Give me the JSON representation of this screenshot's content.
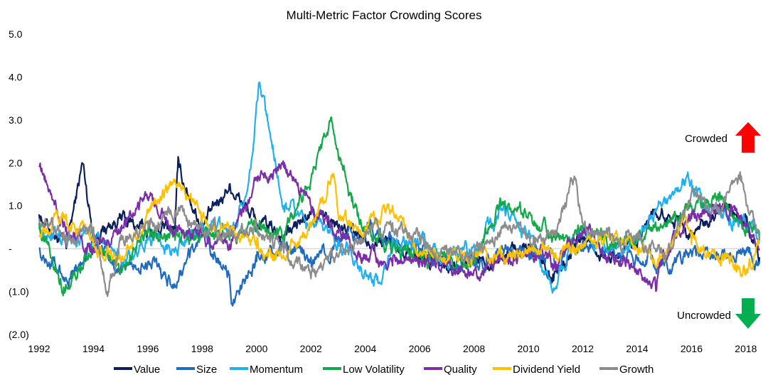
{
  "chart_data": {
    "type": "line",
    "title": "Multi-Metric Factor Crowding Scores",
    "xlabel": "",
    "ylabel": "",
    "xlim": [
      1992,
      2018.5
    ],
    "ylim": [
      -2.0,
      5.0
    ],
    "x_ticks": [
      1992,
      1994,
      1996,
      1998,
      2000,
      2002,
      2004,
      2006,
      2008,
      2010,
      2012,
      2014,
      2016,
      2018
    ],
    "x_tick_labels": [
      "1992",
      "1994",
      "1996",
      "1998",
      "2000",
      "2002",
      "2004",
      "2006",
      "2008",
      "2010",
      "2012",
      "2014",
      "2016",
      "2018"
    ],
    "y_ticks": [
      5,
      4,
      3,
      2,
      1,
      0,
      -1,
      -2
    ],
    "y_tick_labels": [
      "5.0",
      "4.0",
      "3.0",
      "2.0",
      "1.0",
      "-",
      "(1.0)",
      "(2.0)"
    ],
    "grid": false,
    "zero_line": true,
    "legend_position": "bottom",
    "annotations": {
      "crowded": {
        "label": "Crowded",
        "color": "#ff0000"
      },
      "uncrowded": {
        "label": "Uncrowded",
        "color": "#00b050"
      }
    },
    "series": [
      {
        "name": "Value",
        "color": "#0b1f5c",
        "x": [
          1992,
          1993,
          1993.6,
          1994,
          1995,
          1996,
          1997,
          1997.1,
          1998,
          1999,
          2000,
          2001,
          2002,
          2003,
          2004,
          2005,
          2006,
          2007,
          2008,
          2009,
          2010,
          2010.9,
          2012,
          2013,
          2014,
          2014.6,
          2015.5,
          2016,
          2017,
          2018,
          2018.5
        ],
        "y": [
          0.8,
          0.0,
          2.0,
          0.3,
          0.7,
          0.4,
          0.5,
          1.9,
          0.5,
          1.5,
          0.6,
          0.3,
          0.8,
          0.5,
          0.3,
          0.1,
          -0.2,
          -0.5,
          -0.3,
          -0.2,
          0.1,
          -0.6,
          0.3,
          -0.3,
          0.0,
          0.9,
          0.7,
          0.3,
          1.0,
          0.6,
          -0.2
        ]
      },
      {
        "name": "Size",
        "color": "#1f6bbf",
        "x": [
          1992,
          1993,
          1994,
          1995,
          1996,
          1997,
          1998,
          1999,
          1999.1,
          2000,
          2001,
          2002,
          2003,
          2004,
          2005,
          2006,
          2007,
          2008,
          2009,
          2010,
          2011,
          2012,
          2013,
          2014,
          2015,
          2016,
          2017,
          2018,
          2018.5
        ],
        "y": [
          0.0,
          -0.7,
          0.2,
          -0.5,
          -0.3,
          -0.9,
          0.3,
          -0.6,
          -1.3,
          -0.3,
          0.0,
          -0.2,
          0.1,
          0.5,
          0.1,
          0.0,
          -0.3,
          -0.4,
          0.0,
          0.0,
          -0.3,
          0.2,
          -0.1,
          -0.2,
          -0.4,
          -0.1,
          -0.2,
          -0.1,
          -0.3
        ]
      },
      {
        "name": "Momentum",
        "color": "#20b0f0",
        "x": [
          1992,
          1993,
          1994,
          1995,
          1996,
          1997,
          1998,
          1999,
          1999.7,
          2000.1,
          2000.6,
          2001,
          2001.5,
          2002,
          2003,
          2004,
          2004.5,
          2005,
          2006,
          2007,
          2008,
          2009,
          2010,
          2010.9,
          2011.5,
          2012,
          2013,
          2014,
          2015,
          2016,
          2016.5,
          2017,
          2018,
          2018.5
        ],
        "y": [
          0.5,
          0.2,
          0.4,
          -0.3,
          0.2,
          0.0,
          0.6,
          0.4,
          1.5,
          3.9,
          2.4,
          1.0,
          0.8,
          0.6,
          0.2,
          -0.5,
          -0.8,
          0.2,
          0.1,
          -0.3,
          0.1,
          0.9,
          0.3,
          -1.0,
          0.0,
          0.3,
          0.1,
          0.2,
          1.2,
          1.6,
          1.0,
          0.8,
          0.5,
          0.3
        ]
      },
      {
        "name": "Low Volatility",
        "color": "#14a84a",
        "x": [
          1992,
          1992.9,
          1994,
          1995,
          1996,
          1997,
          1998,
          1999,
          2000,
          2001,
          2002,
          2002.7,
          2003.5,
          2004,
          2005,
          2006,
          2007,
          2008,
          2009,
          2010,
          2011,
          2012,
          2013,
          2014,
          2015,
          2016,
          2017,
          2018,
          2018.5
        ],
        "y": [
          0.6,
          -0.9,
          0.0,
          -0.5,
          0.4,
          0.2,
          0.3,
          0.2,
          0.5,
          0.3,
          1.6,
          3.0,
          1.1,
          0.4,
          0.0,
          -0.2,
          -0.3,
          -0.2,
          1.0,
          0.8,
          0.2,
          0.5,
          0.1,
          0.3,
          0.6,
          1.0,
          1.1,
          0.5,
          0.3
        ]
      },
      {
        "name": "Quality",
        "color": "#7a2fa8",
        "x": [
          1992,
          1993,
          1994,
          1995,
          1996,
          1997,
          1998,
          1999,
          2000,
          2001,
          2002,
          2003,
          2004,
          2005,
          2006,
          2007,
          2008,
          2009,
          2010,
          2011,
          2012,
          2013,
          2014,
          2014.7,
          2015,
          2016,
          2017,
          2018,
          2018.5
        ],
        "y": [
          1.9,
          0.5,
          0.0,
          0.5,
          1.2,
          0.4,
          0.3,
          0.1,
          1.6,
          1.9,
          1.0,
          0.4,
          -0.2,
          -0.4,
          -0.3,
          -0.4,
          -0.5,
          -0.2,
          0.0,
          -0.3,
          0.4,
          -0.1,
          -0.5,
          -1.0,
          -0.1,
          0.7,
          1.0,
          0.6,
          0.0
        ]
      },
      {
        "name": "Dividend Yield",
        "color": "#ffc000",
        "x": [
          1992,
          1993,
          1994,
          1995,
          1996,
          1997,
          1998,
          1999,
          2000,
          2001,
          2002,
          2002.8,
          2003,
          2004,
          2005,
          2006,
          2007,
          2008,
          2009,
          2010,
          2011,
          2012,
          2013,
          2014,
          2015,
          2015.7,
          2016,
          2017,
          2018,
          2018.5
        ],
        "y": [
          0.3,
          0.8,
          0.1,
          -0.3,
          0.9,
          1.6,
          0.7,
          0.4,
          0.0,
          -0.2,
          0.5,
          1.7,
          0.8,
          0.5,
          1.0,
          -0.1,
          -0.3,
          -0.1,
          -0.2,
          0.0,
          -0.1,
          0.1,
          0.3,
          0.0,
          -0.3,
          0.8,
          0.1,
          -0.2,
          -0.6,
          0.2
        ]
      },
      {
        "name": "Growth",
        "color": "#8c8c8c",
        "x": [
          1992,
          1993,
          1994,
          1994.5,
          1995,
          1996,
          1997,
          1998,
          1999,
          2000,
          2001,
          2002,
          2003,
          2004,
          2005,
          2006,
          2007,
          2008,
          2009,
          2010,
          2011,
          2011.7,
          2012,
          2013,
          2014,
          2015,
          2016,
          2017,
          2017.8,
          2018.5
        ],
        "y": [
          0.7,
          0.3,
          0.5,
          -1.0,
          0.2,
          0.6,
          0.9,
          0.4,
          0.3,
          0.5,
          -0.1,
          -0.7,
          -0.2,
          0.4,
          0.6,
          0.2,
          -0.1,
          -0.2,
          0.5,
          0.3,
          0.4,
          1.7,
          0.6,
          0.2,
          0.2,
          -0.1,
          1.3,
          0.9,
          1.6,
          0.2
        ]
      }
    ]
  }
}
